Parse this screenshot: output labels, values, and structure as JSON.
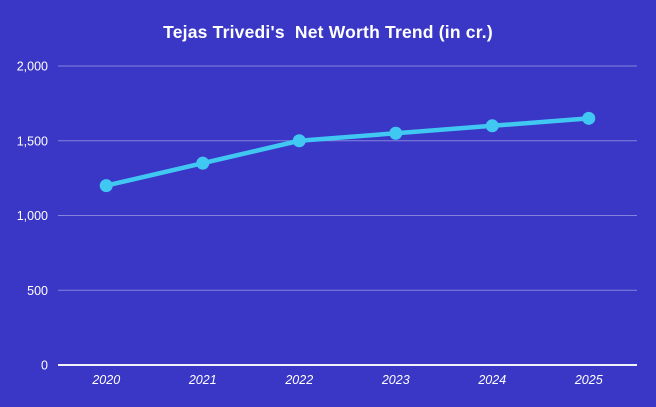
{
  "title": "Tejas Trivedi's  Net Worth Trend (in cr.)",
  "colors": {
    "background": "#3a37c6",
    "line": "#41c8f2",
    "marker": "#41c8f2",
    "gridline": "rgba(255,255,255,0.38)",
    "axis_line": "#f2f2fb",
    "text": "#ffffff"
  },
  "chart_data": {
    "type": "line",
    "title": "Tejas Trivedi's  Net Worth Trend (in cr.)",
    "x": [
      "2020",
      "2021",
      "2022",
      "2023",
      "2024",
      "2025"
    ],
    "values": [
      1200,
      1350,
      1500,
      1550,
      1600,
      1650
    ],
    "xlabel": "",
    "ylabel": "",
    "ylim": [
      0,
      2000
    ],
    "yticks": [
      0,
      500,
      1000,
      1500,
      2000
    ],
    "ytick_labels": [
      "0",
      "500",
      "1,000",
      "1,500",
      "2,000"
    ],
    "grid": true,
    "legend": false,
    "marker": "circle",
    "x_tick_style": "italic"
  }
}
